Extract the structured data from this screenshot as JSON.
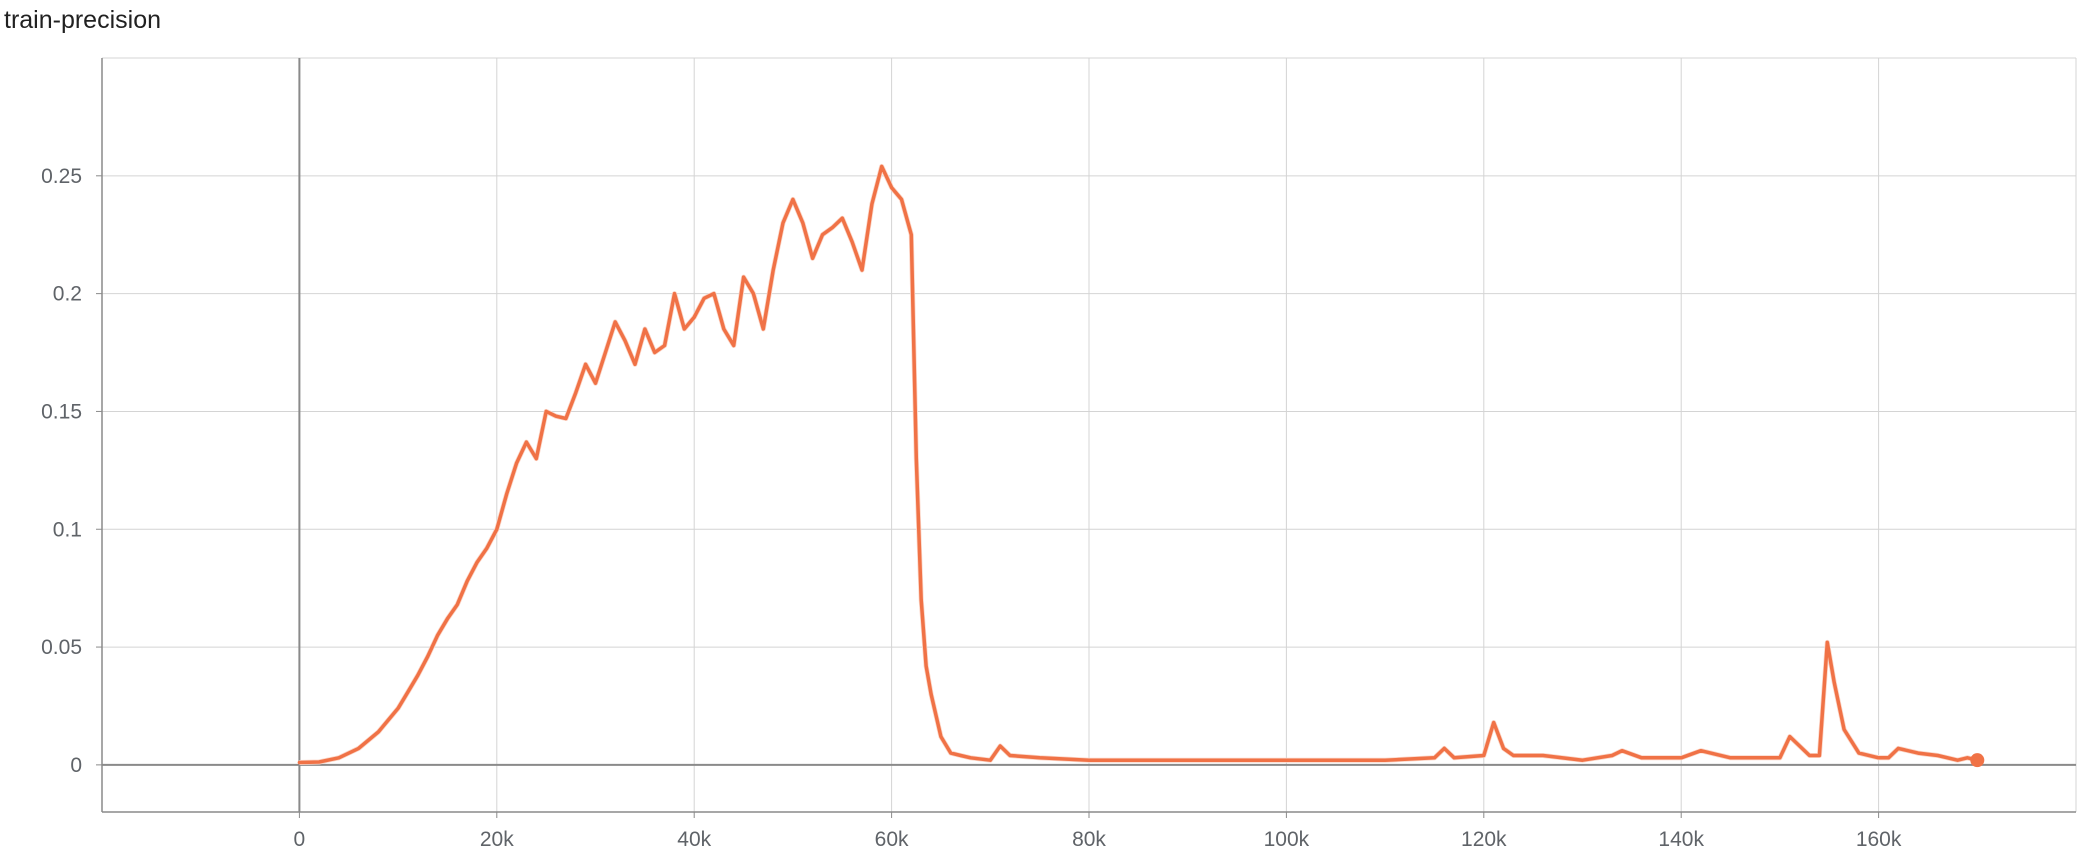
{
  "chart_data": {
    "type": "line",
    "title": "train-precision",
    "xlim": [
      -20000,
      180000
    ],
    "ylim": [
      -0.02,
      0.3
    ],
    "x_ticks": [
      0,
      20000,
      40000,
      60000,
      80000,
      100000,
      120000,
      140000,
      160000
    ],
    "x_tick_labels": [
      "0",
      "20k",
      "40k",
      "60k",
      "80k",
      "100k",
      "120k",
      "140k",
      "160k"
    ],
    "y_ticks": [
      0,
      0.05,
      0.1,
      0.15,
      0.2,
      0.25
    ],
    "y_tick_labels": [
      "0",
      "0.05",
      "0.1",
      "0.15",
      "0.2",
      "0.25"
    ],
    "grid": true,
    "colors": {
      "smoothed": "#f07246",
      "raw": "#fbd6c8",
      "axis": "#8a8a8a",
      "grid": "#d4d4d4"
    },
    "series": [
      {
        "points": [
          [
            0,
            0.001
          ],
          [
            2000,
            0.0012
          ],
          [
            4000,
            0.003
          ],
          [
            6000,
            0.007
          ],
          [
            8000,
            0.014
          ],
          [
            10000,
            0.024
          ],
          [
            11000,
            0.031
          ],
          [
            12000,
            0.038
          ],
          [
            13000,
            0.046
          ],
          [
            14000,
            0.055
          ],
          [
            15000,
            0.062
          ],
          [
            16000,
            0.068
          ],
          [
            17000,
            0.078
          ],
          [
            18000,
            0.086
          ],
          [
            19000,
            0.092
          ],
          [
            20000,
            0.1
          ],
          [
            21000,
            0.115
          ],
          [
            22000,
            0.128
          ],
          [
            23000,
            0.137
          ],
          [
            24000,
            0.13
          ],
          [
            25000,
            0.15
          ],
          [
            26000,
            0.148
          ],
          [
            27000,
            0.147
          ],
          [
            28000,
            0.158
          ],
          [
            29000,
            0.17
          ],
          [
            30000,
            0.162
          ],
          [
            31000,
            0.175
          ],
          [
            32000,
            0.188
          ],
          [
            33000,
            0.18
          ],
          [
            34000,
            0.17
          ],
          [
            35000,
            0.185
          ],
          [
            36000,
            0.175
          ],
          [
            37000,
            0.178
          ],
          [
            38000,
            0.2
          ],
          [
            39000,
            0.185
          ],
          [
            40000,
            0.19
          ],
          [
            41000,
            0.198
          ],
          [
            42000,
            0.2
          ],
          [
            43000,
            0.185
          ],
          [
            44000,
            0.178
          ],
          [
            45000,
            0.207
          ],
          [
            46000,
            0.2
          ],
          [
            47000,
            0.185
          ],
          [
            48000,
            0.21
          ],
          [
            49000,
            0.23
          ],
          [
            50000,
            0.24
          ],
          [
            51000,
            0.23
          ],
          [
            52000,
            0.215
          ],
          [
            53000,
            0.225
          ],
          [
            54000,
            0.228
          ],
          [
            55000,
            0.232
          ],
          [
            56000,
            0.222
          ],
          [
            57000,
            0.21
          ],
          [
            58000,
            0.238
          ],
          [
            59000,
            0.254
          ],
          [
            60000,
            0.245
          ],
          [
            61000,
            0.24
          ],
          [
            62000,
            0.225
          ],
          [
            62500,
            0.13
          ],
          [
            63000,
            0.07
          ],
          [
            63500,
            0.042
          ],
          [
            64000,
            0.03
          ],
          [
            65000,
            0.012
          ],
          [
            66000,
            0.005
          ],
          [
            67000,
            0.004
          ],
          [
            68000,
            0.003
          ],
          [
            70000,
            0.002
          ],
          [
            71000,
            0.008
          ],
          [
            72000,
            0.004
          ],
          [
            75000,
            0.003
          ],
          [
            80000,
            0.002
          ],
          [
            90000,
            0.002
          ],
          [
            100000,
            0.002
          ],
          [
            110000,
            0.002
          ],
          [
            115000,
            0.003
          ],
          [
            116000,
            0.007
          ],
          [
            117000,
            0.003
          ],
          [
            120000,
            0.004
          ],
          [
            121000,
            0.018
          ],
          [
            122000,
            0.007
          ],
          [
            123000,
            0.004
          ],
          [
            126000,
            0.004
          ],
          [
            130000,
            0.002
          ],
          [
            133000,
            0.004
          ],
          [
            134000,
            0.006
          ],
          [
            136000,
            0.003
          ],
          [
            140000,
            0.003
          ],
          [
            142000,
            0.006
          ],
          [
            145000,
            0.003
          ],
          [
            150000,
            0.003
          ],
          [
            151000,
            0.012
          ],
          [
            152000,
            0.008
          ],
          [
            153000,
            0.004
          ],
          [
            154000,
            0.004
          ],
          [
            154800,
            0.052
          ],
          [
            155500,
            0.035
          ],
          [
            156500,
            0.015
          ],
          [
            158000,
            0.005
          ],
          [
            160000,
            0.003
          ],
          [
            161000,
            0.003
          ],
          [
            162000,
            0.007
          ],
          [
            164000,
            0.005
          ],
          [
            166000,
            0.004
          ],
          [
            168000,
            0.002
          ],
          [
            169000,
            0.003
          ],
          [
            170000,
            0.002
          ]
        ]
      }
    ]
  }
}
